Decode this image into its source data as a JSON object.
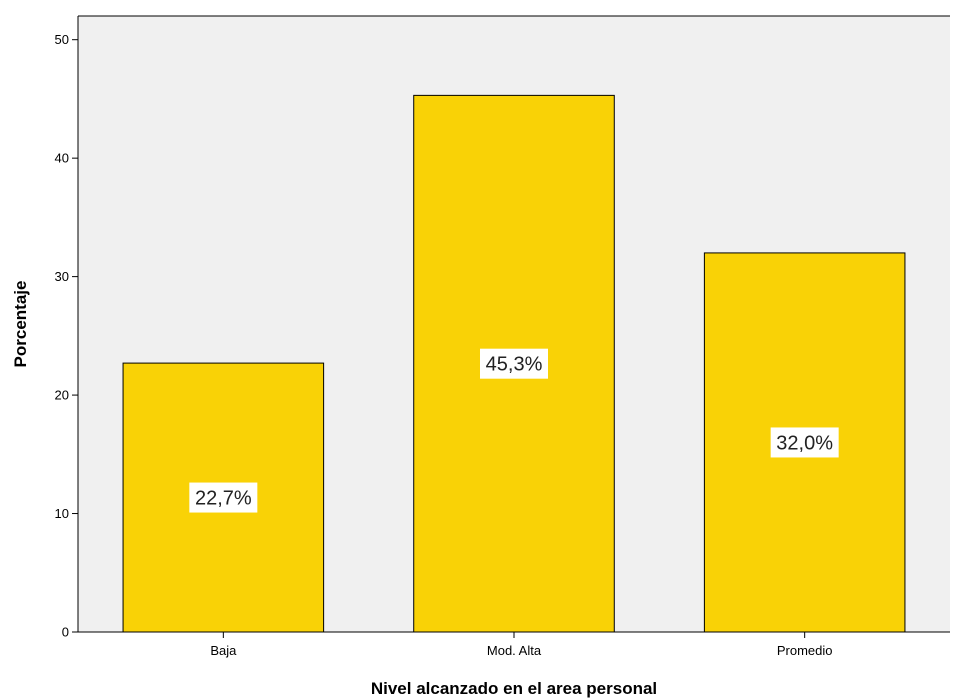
{
  "chart_data": {
    "type": "bar",
    "title": "",
    "xlabel": "Nivel alcanzado en el area personal",
    "ylabel": "Porcentaje",
    "categories": [
      "Baja",
      "Mod. Alta",
      "Promedio"
    ],
    "values": [
      22.7,
      45.3,
      32.0
    ],
    "data_labels": [
      "22,7%",
      "45,3%",
      "32,0%"
    ],
    "ylim": [
      0,
      52
    ],
    "yticks": [
      0,
      10,
      20,
      30,
      40,
      50
    ],
    "ytick_labels": [
      "0",
      "10",
      "20",
      "30",
      "40",
      "50"
    ],
    "grid": false,
    "legend": "none",
    "colors": {
      "bar_fill": "#F9D206",
      "bar_stroke": "#000000",
      "plot_background": "#F0F0F0",
      "page_background": "#FFFFFF",
      "data_label_box": "#FFFFFF"
    }
  }
}
